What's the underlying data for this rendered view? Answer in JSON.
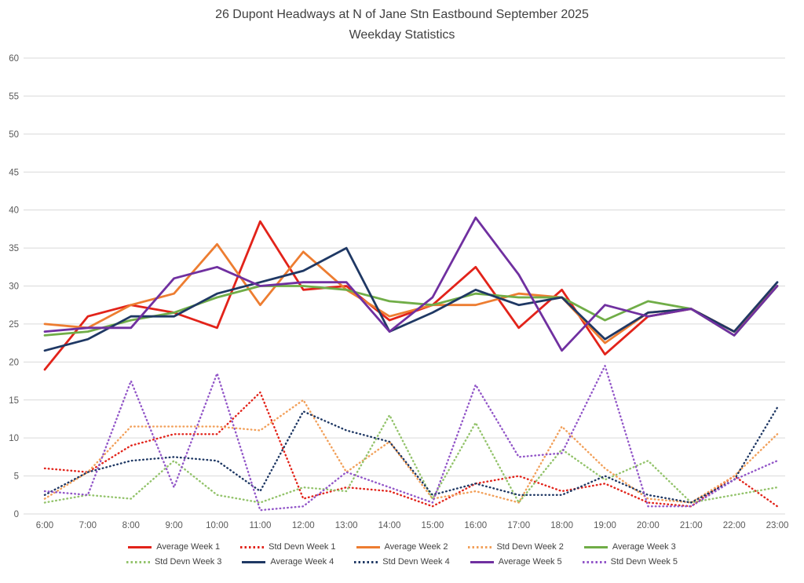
{
  "title": {
    "line1": "26 Dupont Headways at N of Jane Stn Eastbound September 2025",
    "line2": "Weekday Statistics"
  },
  "chart_data": {
    "type": "line",
    "title": "26 Dupont Headways at N of Jane Stn Eastbound September 2025 Weekday Statistics",
    "xlabel": "",
    "ylabel": "",
    "ylim": [
      0,
      60
    ],
    "ytick_step": 5,
    "yticks": [
      0,
      5,
      10,
      15,
      20,
      25,
      30,
      35,
      40,
      45,
      50,
      55,
      60
    ],
    "grid": true,
    "grid_color": "#d9d9d9",
    "axis_text_color": "#595959",
    "legend_position": "bottom",
    "categories": [
      "6:00",
      "7:00",
      "8:00",
      "9:00",
      "10:00",
      "11:00",
      "12:00",
      "13:00",
      "14:00",
      "15:00",
      "16:00",
      "17:00",
      "18:00",
      "19:00",
      "20:00",
      "21:00",
      "22:00",
      "23:00"
    ],
    "series": [
      {
        "name": "Average Week 1",
        "style": "solid",
        "color": "#e2231a",
        "values": [
          19,
          26,
          27.5,
          26.5,
          24.5,
          38.5,
          29.5,
          30,
          25.5,
          27.5,
          32.5,
          24.5,
          29.5,
          21,
          26,
          27,
          24,
          30
        ]
      },
      {
        "name": "Std Devn Week 1",
        "style": "dotted",
        "color": "#e2231a",
        "values": [
          6,
          5.5,
          9,
          10.5,
          10.5,
          16,
          2,
          3.5,
          3,
          1,
          4,
          5,
          3,
          4,
          1.5,
          1,
          5,
          1
        ]
      },
      {
        "name": "Average Week 2",
        "style": "solid",
        "color": "#ed7d31",
        "values": [
          25,
          24.5,
          27.5,
          29,
          35.5,
          27.5,
          34.5,
          29.5,
          26,
          27.5,
          27.5,
          29,
          28.5,
          22.5,
          26.5,
          27,
          24,
          30
        ]
      },
      {
        "name": "Std Devn Week 2",
        "style": "dotted",
        "color": "#f2a05a",
        "values": [
          2,
          5.5,
          11.5,
          11.5,
          11.5,
          11,
          15,
          5.5,
          9.5,
          2,
          3,
          1.5,
          11.5,
          6,
          2,
          1.5,
          5,
          10.5
        ]
      },
      {
        "name": "Average Week 3",
        "style": "solid",
        "color": "#70ad47",
        "values": [
          23.5,
          24,
          25.5,
          26.5,
          28.5,
          30,
          30,
          29.5,
          28,
          27.5,
          29,
          28.5,
          28.5,
          25.5,
          28,
          27,
          23.5,
          30
        ]
      },
      {
        "name": "Std Devn Week 3",
        "style": "dotted",
        "color": "#93c36b",
        "values": [
          1.5,
          2.5,
          2,
          7,
          2.5,
          1.5,
          3.5,
          3,
          13,
          2,
          12,
          1.5,
          8.5,
          4.5,
          7,
          1.5,
          2.5,
          3.5
        ]
      },
      {
        "name": "Average Week 4",
        "style": "solid",
        "color": "#1f3864",
        "values": [
          21.5,
          23,
          26,
          26,
          29,
          30.5,
          32,
          35,
          24,
          26.5,
          29.5,
          27.5,
          28.5,
          23,
          26.5,
          27,
          24,
          30.5
        ]
      },
      {
        "name": "Std Devn Week 4",
        "style": "dotted",
        "color": "#1f3864",
        "values": [
          2.5,
          5.5,
          7,
          7.5,
          7,
          3,
          13.5,
          11,
          9.5,
          2.5,
          4,
          2.5,
          2.5,
          5,
          2.5,
          1.5,
          4.5,
          14
        ]
      },
      {
        "name": "Average Week 5",
        "style": "solid",
        "color": "#7030a0",
        "values": [
          24,
          24.5,
          24.5,
          31,
          32.5,
          30,
          30.5,
          30.5,
          24,
          28.5,
          39,
          31.5,
          21.5,
          27.5,
          26,
          27,
          23.5,
          30
        ]
      },
      {
        "name": "Std Devn Week 5",
        "style": "dotted",
        "color": "#9256c8",
        "values": [
          3,
          2.5,
          17.5,
          3.5,
          18.5,
          0.5,
          1,
          5.5,
          3.5,
          1.5,
          17,
          7.5,
          8,
          19.5,
          1,
          1,
          4.5,
          7
        ]
      }
    ],
    "legend_rows": [
      [
        0,
        1,
        2,
        3,
        4
      ],
      [
        5,
        6,
        7,
        8,
        9
      ]
    ]
  }
}
